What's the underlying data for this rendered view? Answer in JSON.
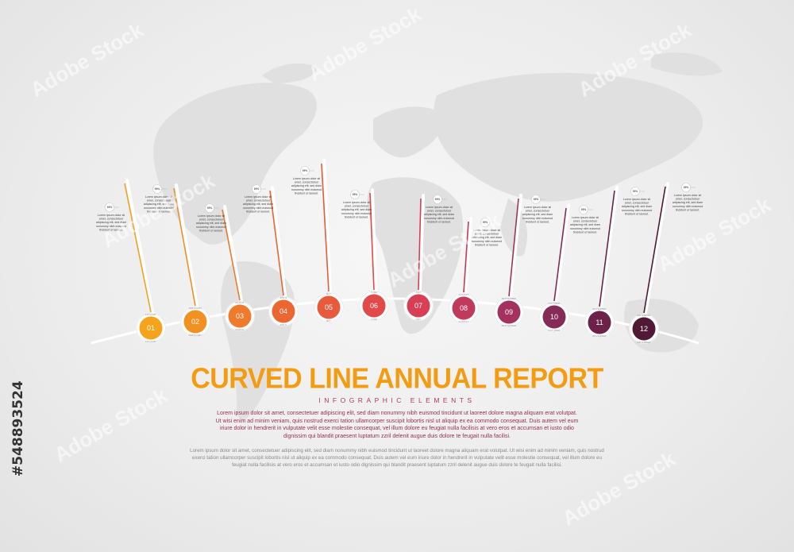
{
  "side_id": "#548893524",
  "watermark": "Adobe Stock",
  "title": "CURVED LINE ANNUAL REPORT",
  "subtitle": "INFOGRAPHIC ELEMENTS",
  "paragraph1": "Lorem ipsum dolor sit amet, consectetuer adipiscing elit, sed diam nonummy nibh euismod tincidunt ut laoreet dolore magna aliquam erat volutpat. Ut wisi enim ad minim veniam, quis nostrud exerci tation ullamcorper suscipit lobortis nisl ut aliquip ex ea commodo consequat. Duis autem vel eum iriure dolor in hendrerit in vulputate velit esse molestie consequat, vel illum dolore eu feugiat nulla facilisis at vero eros et accumsan et iusto odio dignissim qui blandit praesent luptatum zzril delenit augue duis dolore te feugait nulla facilisi.",
  "paragraph2": "Lorem ipsum dolor sit amet, consectetuer adipiscing elit, sed diam nonummy nibh euismod tincidunt ut laoreet dolore magna aliquam erat volutpat. Ut wisi enim ad minim veniam, quis nostrud exerci tation ullamcorper suscipit lobortis nisl ut aliquip ex ea commodo consequat. Duis autem vel eum iriure dolor in hendrerit in vulputate velit esse molestie consequat, vel illum dolore eu feugiat nulla facilisis at vero eros et accumsan et iusto odio dignissim qui blandit praesent luptatum zzril delenit augue duis dolore te feugait nulla facilisi.",
  "item_text": [
    "Lorem ipsum dolor sit",
    "amet, consectetuer",
    "adipiscing elit, sed diam",
    "nonummy nibh euismod",
    "tincidunt ut laoreet."
  ],
  "steps": [
    {
      "number": "01",
      "month": "JANUARY",
      "percent": "99%",
      "color": "#f5a31a"
    },
    {
      "number": "02",
      "month": "FEBRUARY",
      "percent": "99%",
      "color": "#f39022"
    },
    {
      "number": "03",
      "month": "MARCH",
      "percent": "99%",
      "color": "#ef7a2c"
    },
    {
      "number": "04",
      "month": "APRIL",
      "percent": "99%",
      "color": "#ec6632"
    },
    {
      "number": "05",
      "month": "MAY",
      "percent": "99%",
      "color": "#e85a3c"
    },
    {
      "number": "06",
      "month": "JUNE",
      "percent": "99%",
      "color": "#e24a4a"
    },
    {
      "number": "07",
      "month": "JULY",
      "percent": "99%",
      "color": "#d83f55"
    },
    {
      "number": "08",
      "month": "AUGUST",
      "percent": "99%",
      "color": "#c13a5c"
    },
    {
      "number": "09",
      "month": "SEPTEMBER",
      "percent": "99%",
      "color": "#a33260"
    },
    {
      "number": "10",
      "month": "OCTOBER",
      "percent": "99%",
      "color": "#862a58"
    },
    {
      "number": "11",
      "month": "NOVEMBER",
      "percent": "99%",
      "color": "#6c2248"
    },
    {
      "number": "12",
      "month": "DECEMBER",
      "percent": "99%",
      "color": "#501a36"
    }
  ]
}
